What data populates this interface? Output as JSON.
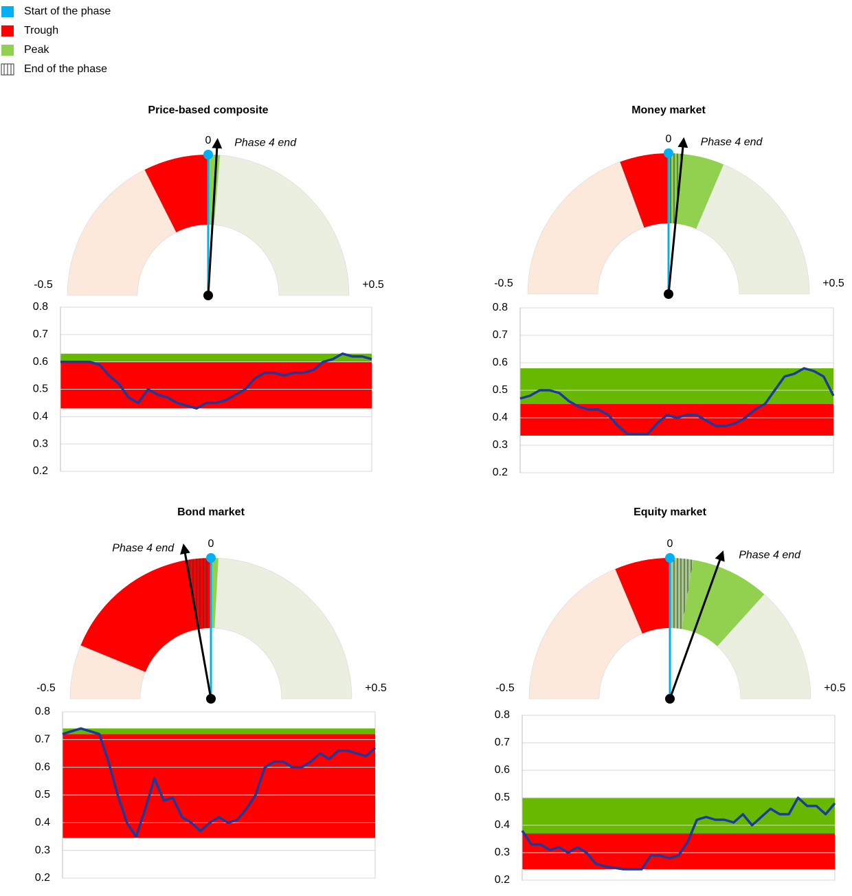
{
  "legend": {
    "items": [
      {
        "name": "Start of the phase",
        "color": "#00b0f0"
      },
      {
        "name": "Trough",
        "color": "#ff0000"
      },
      {
        "name": "Peak",
        "color": "#92d050"
      },
      {
        "name": "End of the phase",
        "color": "#ffffff",
        "hatch": true
      }
    ]
  },
  "chart_data": [
    {
      "type": "gauge",
      "title": "Price-based composite",
      "xlim": [
        -0.5,
        0.5
      ],
      "xticks": [
        -0.5,
        0,
        {
          "value": 0.5,
          "label": "+0.5"
        }
      ],
      "sectors": [
        {
          "start": -0.5,
          "end": -0.149,
          "color": "#fce9dc"
        },
        {
          "start": -0.149,
          "end": 0,
          "color": "#ff0000"
        },
        {
          "start": 0,
          "end": 0.027,
          "color": "#92d050"
        },
        {
          "start": 0.027,
          "end": 0.5,
          "color": "#ebefdf"
        }
      ],
      "start": 0,
      "start_color": "#00b0f0",
      "end": 0.019,
      "annotation": "Phase 4 end"
    },
    {
      "type": "line",
      "ylim": [
        0.2,
        0.8
      ],
      "yticks": [
        0.2,
        0.3,
        0.4,
        0.5,
        0.6,
        0.7,
        0.8
      ],
      "grid": true,
      "bands": [
        {
          "from": 0.43,
          "to": 0.6,
          "color": "#ff0000"
        },
        {
          "from": 0.6,
          "to": 0.63,
          "color": "#66b800"
        }
      ],
      "series": [
        {
          "color": "#1a3a9e",
          "values": [
            0.6,
            0.6,
            0.6,
            0.6,
            0.59,
            0.55,
            0.52,
            0.47,
            0.45,
            0.5,
            0.48,
            0.47,
            0.45,
            0.44,
            0.43,
            0.45,
            0.45,
            0.46,
            0.48,
            0.5,
            0.54,
            0.56,
            0.56,
            0.55,
            0.56,
            0.56,
            0.57,
            0.6,
            0.61,
            0.63,
            0.62,
            0.62,
            0.61
          ]
        }
      ]
    },
    {
      "type": "gauge",
      "title": "Money market",
      "xlim": [
        -0.5,
        0.5
      ],
      "xticks": [
        -0.5,
        0,
        {
          "value": 0.5,
          "label": "+0.5"
        }
      ],
      "sectors": [
        {
          "start": -0.5,
          "end": -0.112,
          "color": "#fce9dc"
        },
        {
          "start": -0.112,
          "end": 0,
          "color": "#ff0000"
        },
        {
          "start": 0,
          "end": 0.031,
          "color": "#92d050",
          "hatch": true
        },
        {
          "start": 0.031,
          "end": 0.128,
          "color": "#92d050"
        },
        {
          "start": 0.128,
          "end": 0.5,
          "color": "#ebefdf"
        }
      ],
      "start": 0,
      "start_color": "#00b0f0",
      "end": 0.031,
      "annotation": "Phase 4 end"
    },
    {
      "type": "line",
      "ylim": [
        0.2,
        0.8
      ],
      "yticks": [
        0.2,
        0.3,
        0.4,
        0.5,
        0.6,
        0.7,
        0.8
      ],
      "grid": true,
      "bands": [
        {
          "from": 0.335,
          "to": 0.45,
          "color": "#ff0000"
        },
        {
          "from": 0.45,
          "to": 0.58,
          "color": "#66b800"
        }
      ],
      "series": [
        {
          "color": "#1a3a9e",
          "values": [
            0.47,
            0.48,
            0.5,
            0.5,
            0.49,
            0.46,
            0.44,
            0.43,
            0.43,
            0.41,
            0.37,
            0.34,
            0.34,
            0.34,
            0.38,
            0.41,
            0.4,
            0.41,
            0.41,
            0.39,
            0.37,
            0.37,
            0.38,
            0.4,
            0.43,
            0.45,
            0.5,
            0.55,
            0.56,
            0.58,
            0.57,
            0.55,
            0.48
          ]
        }
      ]
    },
    {
      "type": "gauge",
      "title": "Bond market",
      "xlim": [
        -0.5,
        0.5
      ],
      "xticks": [
        -0.5,
        0,
        {
          "value": 0.5,
          "label": "+0.5"
        }
      ],
      "sectors": [
        {
          "start": -0.5,
          "end": -0.376,
          "color": "#fce9dc"
        },
        {
          "start": -0.376,
          "end": -0.056,
          "color": "#ff0000"
        },
        {
          "start": -0.056,
          "end": 0,
          "color": "#ff0000",
          "hatch": true
        },
        {
          "start": 0,
          "end": 0.017,
          "color": "#92d050"
        },
        {
          "start": 0.017,
          "end": 0.5,
          "color": "#ebefdf"
        }
      ],
      "start": 0,
      "start_color": "#00b0f0",
      "end": -0.056,
      "annotation": "Phase 4 end"
    },
    {
      "type": "line",
      "ylim": [
        0.2,
        0.8
      ],
      "yticks": [
        0.2,
        0.3,
        0.4,
        0.5,
        0.6,
        0.7,
        0.8
      ],
      "grid": true,
      "bands": [
        {
          "from": 0.345,
          "to": 0.72,
          "color": "#ff0000"
        },
        {
          "from": 0.72,
          "to": 0.74,
          "color": "#66b800"
        }
      ],
      "series": [
        {
          "color": "#1a3a9e",
          "values": [
            0.72,
            0.73,
            0.74,
            0.73,
            0.72,
            0.62,
            0.5,
            0.4,
            0.35,
            0.45,
            0.56,
            0.48,
            0.49,
            0.42,
            0.4,
            0.37,
            0.4,
            0.42,
            0.4,
            0.41,
            0.45,
            0.5,
            0.6,
            0.62,
            0.62,
            0.6,
            0.6,
            0.62,
            0.65,
            0.63,
            0.66,
            0.66,
            0.65,
            0.64,
            0.67
          ]
        }
      ]
    },
    {
      "type": "gauge",
      "title": "Equity market",
      "xlim": [
        -0.5,
        0.5
      ],
      "xticks": [
        -0.5,
        0,
        {
          "value": 0.5,
          "label": "+0.5"
        }
      ],
      "sectors": [
        {
          "start": -0.5,
          "end": -0.127,
          "color": "#fce9dc"
        },
        {
          "start": -0.127,
          "end": 0,
          "color": "#ff0000"
        },
        {
          "start": 0,
          "end": 0.053,
          "color": "#a9c98a",
          "hatch": true
        },
        {
          "start": 0.053,
          "end": 0.234,
          "color": "#92d050"
        },
        {
          "start": 0.234,
          "end": 0.5,
          "color": "#ebefdf"
        }
      ],
      "start": 0,
      "start_color": "#00b0f0",
      "end": 0.11,
      "annotation": "Phase 4 end"
    },
    {
      "type": "line",
      "ylim": [
        0.2,
        0.8
      ],
      "yticks": [
        0.2,
        0.3,
        0.4,
        0.5,
        0.6,
        0.7,
        0.8
      ],
      "grid": true,
      "bands": [
        {
          "from": 0.24,
          "to": 0.37,
          "color": "#ff0000"
        },
        {
          "from": 0.37,
          "to": 0.5,
          "color": "#66b800"
        }
      ],
      "series": [
        {
          "color": "#1a3a9e",
          "values": [
            0.38,
            0.33,
            0.33,
            0.31,
            0.32,
            0.3,
            0.32,
            0.3,
            0.26,
            0.25,
            0.245,
            0.24,
            0.24,
            0.24,
            0.29,
            0.29,
            0.28,
            0.29,
            0.34,
            0.42,
            0.43,
            0.42,
            0.42,
            0.41,
            0.44,
            0.4,
            0.43,
            0.46,
            0.44,
            0.44,
            0.5,
            0.47,
            0.47,
            0.44,
            0.48
          ]
        }
      ]
    }
  ]
}
